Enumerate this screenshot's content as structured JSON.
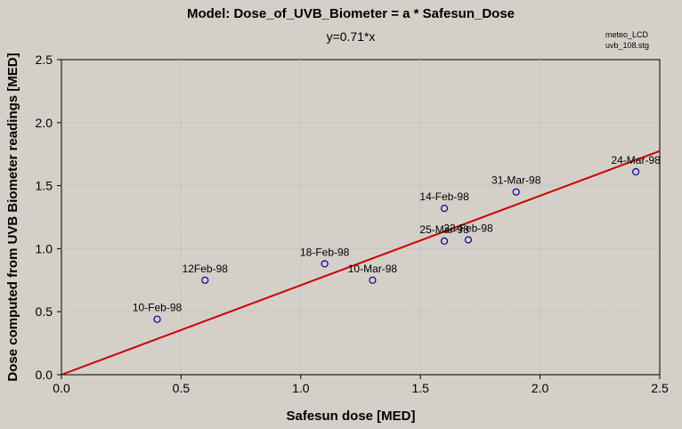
{
  "chart_data": {
    "type": "scatter",
    "title": "Model: Dose_of_UVB_Biometer = a * Safesun_Dose",
    "subtitle": "y=0.71*x",
    "notes": [
      "meteo_LCD",
      "uvb_108.stg"
    ],
    "xlabel": "Safesun dose [MED]",
    "ylabel": "Dose computed from UVB Biometer readings [MED]",
    "xlim": [
      0,
      2.5
    ],
    "ylim": [
      0,
      2.5
    ],
    "xticks": [
      "0.0",
      "0.5",
      "1.0",
      "1.5",
      "2.0",
      "2.5"
    ],
    "yticks": [
      "0.0",
      "0.5",
      "1.0",
      "1.5",
      "2.0",
      "2.5"
    ],
    "grid": true,
    "points": [
      {
        "x": 0.4,
        "y": 0.44,
        "label": "10-Feb-98"
      },
      {
        "x": 0.6,
        "y": 0.75,
        "label": "12Feb-98"
      },
      {
        "x": 1.1,
        "y": 0.88,
        "label": "18-Feb-98"
      },
      {
        "x": 1.3,
        "y": 0.75,
        "label": "10-Mar-98"
      },
      {
        "x": 1.6,
        "y": 1.32,
        "label": "14-Feb-98"
      },
      {
        "x": 1.6,
        "y": 1.06,
        "label": "25-Mar-98"
      },
      {
        "x": 1.7,
        "y": 1.07,
        "label": "23-Feb-98"
      },
      {
        "x": 1.9,
        "y": 1.45,
        "label": "31-Mar-98"
      },
      {
        "x": 2.4,
        "y": 1.61,
        "label": "24-Mar-98"
      }
    ],
    "fit": {
      "slope": 0.71,
      "x_range": [
        0,
        2.5
      ]
    },
    "colors": {
      "background": "#d4d0c8",
      "points": "#0000a0",
      "fit_line": "#cc0000",
      "grid": "#b0b0b0"
    }
  }
}
